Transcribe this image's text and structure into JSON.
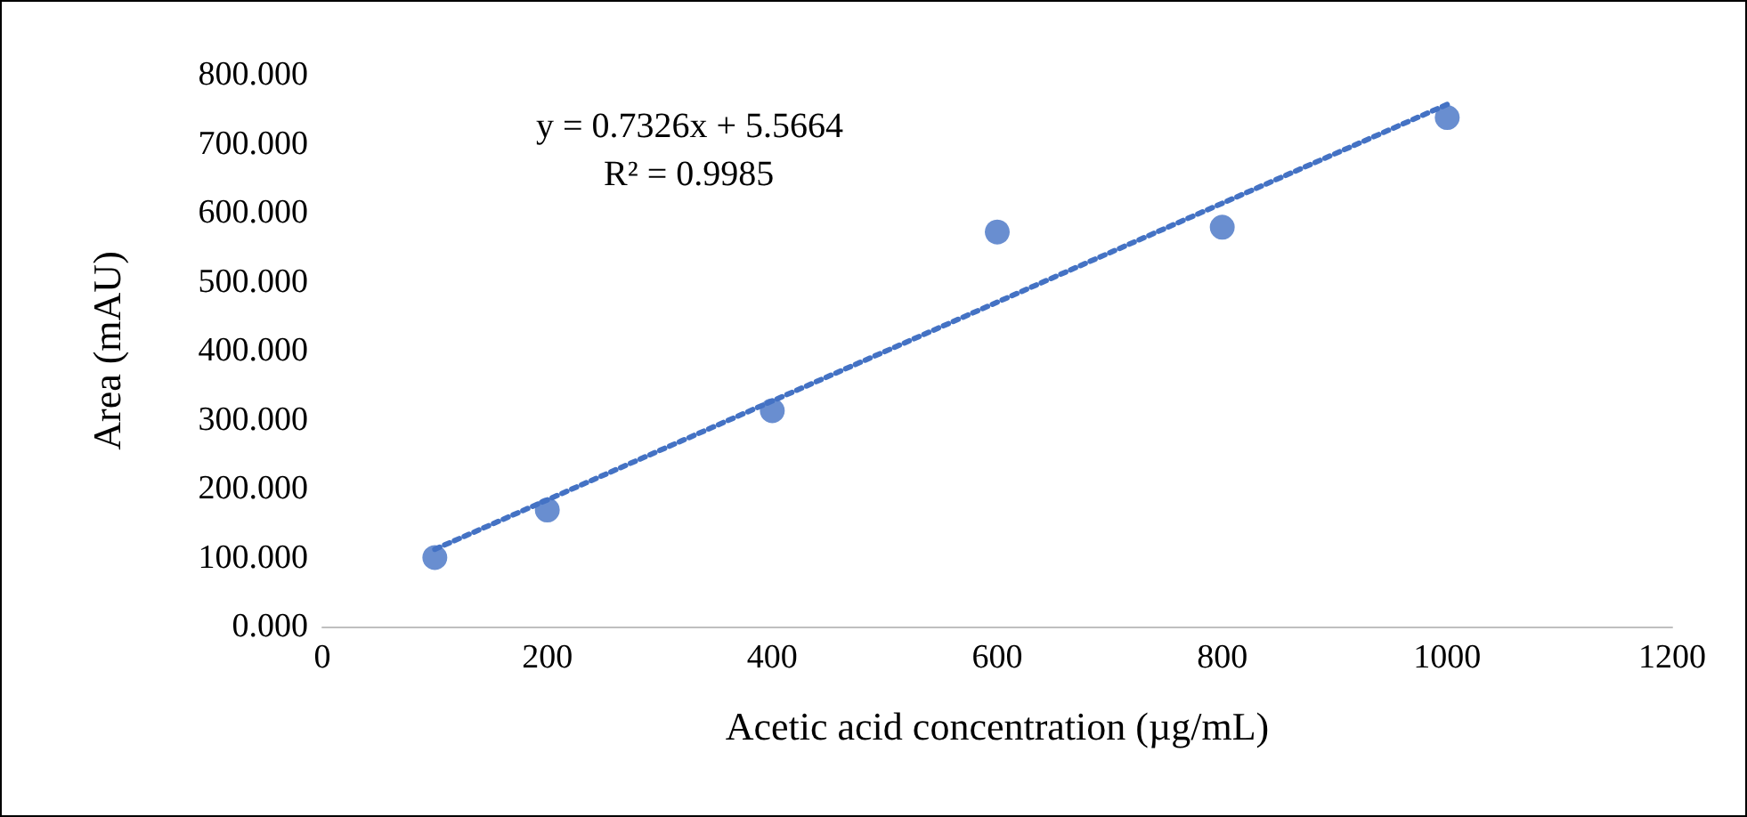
{
  "chart_data": {
    "type": "scatter",
    "xlabel": "Acetic acid concentration (µg/mL)",
    "ylabel": "Area (mAU)",
    "annotations": [
      "y = 0.7326x + 5.5664",
      "R² = 0.9985"
    ],
    "series": [
      {
        "color": "#4472c4",
        "x": [
          100,
          200,
          400,
          600,
          800,
          1000
        ],
        "values": [
          100,
          169,
          313,
          572,
          579,
          738
        ],
        "marker": "circle"
      },
      {
        "type": "line",
        "color": "#4472c4",
        "x": [
          100,
          1000
        ],
        "values": [
          112,
          757
        ],
        "line_style": "dotted",
        "marker": "none"
      }
    ],
    "xlim": [
      0,
      1200
    ],
    "xticks": [
      0,
      200,
      400,
      600,
      800,
      1000,
      1200
    ],
    "ylim": [
      0,
      800
    ],
    "yticks": [
      {
        "value": 0,
        "label": "0.000"
      },
      {
        "value": 100,
        "label": "100.000"
      },
      {
        "value": 200,
        "label": "200.000"
      },
      {
        "value": 300,
        "label": "300.000"
      },
      {
        "value": 400,
        "label": "400.000"
      },
      {
        "value": 500,
        "label": "500.000"
      },
      {
        "value": 600,
        "label": "600.000"
      },
      {
        "value": 700,
        "label": "700.000"
      },
      {
        "value": 800,
        "label": "800.000"
      }
    ],
    "grid": false
  }
}
